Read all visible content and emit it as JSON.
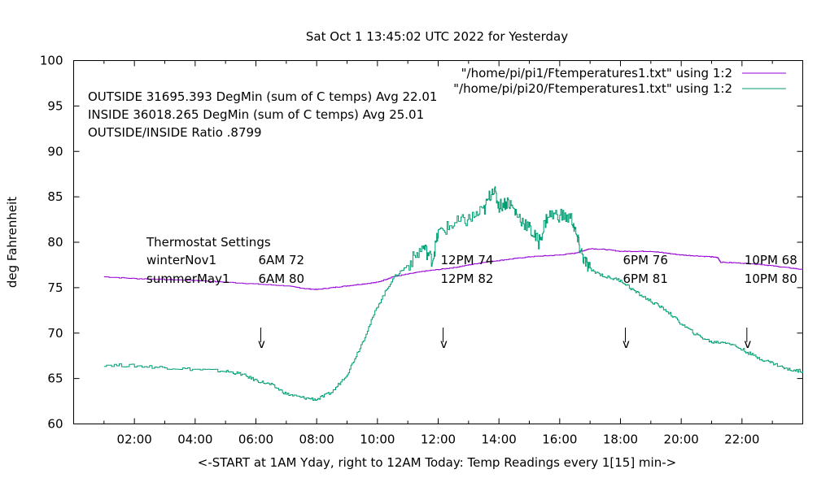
{
  "chart_data": {
    "type": "line",
    "title": "Sat Oct  1 13:45:02 UTC 2022 for Yesterday",
    "xlabel": "<-START at 1AM Yday, right to 12AM Today:  Temp Readings every 1[15] min->",
    "ylabel": "deg Fahrenheit",
    "xlim": [
      0,
      24
    ],
    "ylim": [
      60,
      100
    ],
    "grid": false,
    "legend_position": "top-right",
    "yticks": [
      60,
      65,
      70,
      75,
      80,
      85,
      90,
      95,
      100
    ],
    "xticks": [
      {
        "value": 2,
        "label": "02:00"
      },
      {
        "value": 4,
        "label": "04:00"
      },
      {
        "value": 6,
        "label": "06:00"
      },
      {
        "value": 8,
        "label": "08:00"
      },
      {
        "value": 10,
        "label": "10:00"
      },
      {
        "value": 12,
        "label": "12:00"
      },
      {
        "value": 14,
        "label": "14:00"
      },
      {
        "value": 16,
        "label": "16:00"
      },
      {
        "value": 18,
        "label": "18:00"
      },
      {
        "value": 20,
        "label": "20:00"
      },
      {
        "value": 22,
        "label": "22:00"
      }
    ],
    "series": [
      {
        "name": "\"/home/pi/pi1/Ftemperatures1.txt\" using 1:2",
        "color": "#9400d3",
        "x": [
          1,
          2,
          3,
          4,
          5,
          6,
          7,
          7.6,
          8,
          8.5,
          9,
          9.5,
          10,
          10.5,
          11,
          11.5,
          12,
          12.5,
          13,
          13.5,
          14,
          14.5,
          15,
          15.5,
          16,
          16.5,
          16.8,
          17,
          17.5,
          18,
          18.5,
          19,
          19.5,
          20,
          20.5,
          21,
          21.2,
          21.3,
          22,
          22.5,
          23,
          23.5,
          24
        ],
        "y": [
          76.2,
          76.0,
          75.9,
          75.8,
          75.6,
          75.4,
          75.2,
          74.9,
          74.8,
          75.0,
          75.2,
          75.4,
          75.6,
          76.2,
          76.5,
          76.8,
          77.0,
          77.2,
          77.5,
          77.8,
          78.0,
          78.2,
          78.4,
          78.5,
          78.6,
          78.8,
          79.1,
          79.3,
          79.2,
          79.0,
          79.0,
          79.0,
          78.8,
          78.6,
          78.5,
          78.4,
          78.3,
          77.8,
          77.7,
          77.6,
          77.4,
          77.2,
          77.0
        ]
      },
      {
        "name": "\"/home/pi/pi20/Ftemperatures1.txt\" using 1:2",
        "color": "#009e73",
        "x": [
          1,
          2,
          3,
          4,
          5,
          5.5,
          6,
          6.5,
          7,
          7.5,
          8,
          8.5,
          9,
          9.5,
          10,
          10.5,
          11,
          11.5,
          11.8,
          12,
          12.5,
          13,
          13.5,
          13.8,
          14,
          14.3,
          14.6,
          15,
          15.3,
          15.6,
          16,
          16.4,
          16.6,
          16.8,
          17,
          17.5,
          18,
          18.5,
          19,
          19.5,
          20,
          20.5,
          21,
          21.5,
          22,
          22.5,
          23,
          23.5,
          24
        ],
        "y": [
          66.5,
          66.4,
          66.2,
          66.0,
          65.8,
          65.5,
          64.8,
          64.3,
          63.3,
          62.9,
          62.7,
          63.5,
          65.5,
          69,
          73,
          76,
          77.5,
          79.5,
          78,
          81,
          82,
          82.5,
          83.5,
          86,
          84,
          84.5,
          83,
          81.5,
          80,
          83,
          83,
          82.5,
          80,
          78,
          77,
          76.2,
          75.8,
          74.5,
          73.5,
          72.5,
          71,
          69.8,
          69,
          69,
          68.2,
          67.3,
          66.7,
          66,
          65.8
        ]
      }
    ],
    "annotations": {
      "stats": [
        "OUTSIDE 31695.393 DegMin (sum of C temps) Avg 22.01",
        "INSIDE 36018.265 DegMin (sum of C temps) Avg 25.01",
        "OUTSIDE/INSIDE Ratio .8799"
      ],
      "thermostat_title": "Thermostat Settings",
      "winter_label": "winterNov1",
      "summer_label": "summerMay1",
      "settings": [
        {
          "hour": 6,
          "winter": "6AM 72",
          "summer": "6AM 80"
        },
        {
          "hour": 12,
          "winter": "12PM 74",
          "summer": "12PM 82"
        },
        {
          "hour": 18,
          "winter": "6PM 76",
          "summer": "6PM 81"
        },
        {
          "hour": 22,
          "winter": "10PM 68",
          "summer": "10PM 80"
        }
      ],
      "arrow_glyph": "v"
    }
  }
}
